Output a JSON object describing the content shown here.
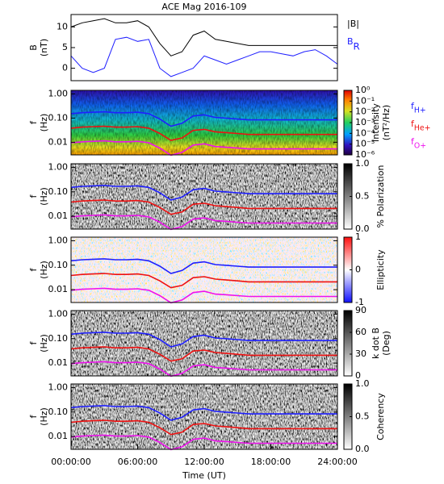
{
  "chart_data": [
    {
      "type": "line",
      "title": "ACE Mag 2016-109",
      "ylabel": [
        "B",
        "(nT)"
      ],
      "x": [
        0,
        1,
        2,
        3,
        4,
        5,
        6,
        7,
        8,
        9,
        10,
        11,
        12,
        13,
        14,
        15,
        16,
        17,
        18,
        19,
        20,
        21,
        22,
        23,
        24
      ],
      "xlim": [
        0,
        24
      ],
      "ylim": [
        -3,
        13
      ],
      "yticks": [
        0,
        5,
        10
      ],
      "legend": "right-outside",
      "series": [
        {
          "name": "|B|",
          "color": "#000000",
          "values": [
            10,
            11,
            11.5,
            12,
            11,
            11,
            11.5,
            10,
            6,
            3,
            4,
            8,
            9,
            7,
            6.5,
            6,
            5.5,
            5.5,
            5.5,
            5.5,
            5.5,
            5.5,
            5.5,
            5.5,
            5.5
          ]
        },
        {
          "name": "BR",
          "color": "#1f1fff",
          "values": [
            3,
            0,
            -1,
            0,
            7,
            7.5,
            6.5,
            7,
            0,
            -2,
            -1,
            0,
            3,
            2,
            1,
            2,
            3,
            4,
            4,
            3.5,
            3,
            4,
            4.5,
            3,
            1
          ]
        }
      ]
    },
    {
      "type": "spectrogram",
      "ylabel": [
        "f",
        "(Hz)"
      ],
      "colormap": "rainbow",
      "colorbar_log": true,
      "colorbar_label": [
        "Intensity",
        "(nT²/Hz)"
      ],
      "clim": [
        1e-06,
        1
      ],
      "cticks": [
        {
          "value": 1,
          "label": "10⁰"
        },
        {
          "value": 0.1,
          "label": "10⁻¹"
        },
        {
          "value": 0.01,
          "label": "10⁻²"
        },
        {
          "value": 0.001,
          "label": "10⁻³"
        },
        {
          "value": 0.0001,
          "label": "10⁻⁴"
        },
        {
          "value": 1e-05,
          "label": "10⁻⁵"
        },
        {
          "value": 1e-06,
          "label": "10⁻⁶"
        }
      ],
      "log_y": true,
      "ylim": [
        0.003,
        1.4
      ],
      "yticks": [
        {
          "value": 1,
          "label": "1.00"
        },
        {
          "value": 0.1,
          "label": "0.10"
        },
        {
          "value": 0.01,
          "label": "0.01"
        }
      ],
      "xlim": [
        0,
        24
      ],
      "legend": "right-outside",
      "x": [
        0,
        1,
        2,
        3,
        4,
        5,
        6,
        7,
        8,
        9,
        10,
        11,
        12,
        13,
        14,
        15,
        16,
        17,
        18,
        19,
        20,
        21,
        22,
        23,
        24
      ],
      "series": [
        {
          "name": "fH+",
          "color": "#1f1fff",
          "values": [
            0.152,
            0.167,
            0.175,
            0.182,
            0.167,
            0.167,
            0.175,
            0.152,
            0.091,
            0.046,
            0.061,
            0.122,
            0.137,
            0.106,
            0.099,
            0.091,
            0.084,
            0.084,
            0.084,
            0.084,
            0.084,
            0.084,
            0.084,
            0.084,
            0.084
          ]
        },
        {
          "name": "fHe+",
          "color": "#ee1111",
          "values": [
            0.038,
            0.042,
            0.044,
            0.046,
            0.042,
            0.042,
            0.044,
            0.038,
            0.023,
            0.012,
            0.015,
            0.031,
            0.034,
            0.027,
            0.025,
            0.023,
            0.021,
            0.021,
            0.021,
            0.021,
            0.021,
            0.021,
            0.021,
            0.021,
            0.021
          ]
        },
        {
          "name": "fO+",
          "color": "#ee11ee",
          "values": [
            0.0095,
            0.0104,
            0.0109,
            0.0114,
            0.0104,
            0.0104,
            0.0109,
            0.0095,
            0.0057,
            0.0029,
            0.0038,
            0.0076,
            0.0086,
            0.0066,
            0.0062,
            0.0057,
            0.0053,
            0.0053,
            0.0053,
            0.0053,
            0.0053,
            0.0053,
            0.0053,
            0.0053,
            0.0053
          ]
        }
      ]
    },
    {
      "type": "spectrogram",
      "ylabel": [
        "f",
        "(Hz)"
      ],
      "colormap": "gray",
      "colorbar_log": false,
      "colorbar_label": [
        "% Polarization"
      ],
      "clim": [
        0,
        1
      ],
      "cticks": [
        {
          "value": 0,
          "label": "0.0"
        },
        {
          "value": 0.5,
          "label": "0.5"
        },
        {
          "value": 1,
          "label": "1.0"
        }
      ],
      "log_y": true,
      "ylim": [
        0.003,
        1.4
      ],
      "yticks": [
        {
          "value": 1,
          "label": "1.00"
        },
        {
          "value": 0.1,
          "label": "0.10"
        },
        {
          "value": 0.01,
          "label": "0.01"
        }
      ],
      "xlim": [
        0,
        24
      ],
      "x": [
        0,
        1,
        2,
        3,
        4,
        5,
        6,
        7,
        8,
        9,
        10,
        11,
        12,
        13,
        14,
        15,
        16,
        17,
        18,
        19,
        20,
        21,
        22,
        23,
        24
      ],
      "series": [
        {
          "color": "#1f1fff",
          "values": [
            0.152,
            0.167,
            0.175,
            0.182,
            0.167,
            0.167,
            0.175,
            0.152,
            0.091,
            0.046,
            0.061,
            0.122,
            0.137,
            0.106,
            0.099,
            0.091,
            0.084,
            0.084,
            0.084,
            0.084,
            0.084,
            0.084,
            0.084,
            0.084,
            0.084
          ]
        },
        {
          "color": "#ee1111",
          "values": [
            0.038,
            0.042,
            0.044,
            0.046,
            0.042,
            0.042,
            0.044,
            0.038,
            0.023,
            0.012,
            0.015,
            0.031,
            0.034,
            0.027,
            0.025,
            0.023,
            0.021,
            0.021,
            0.021,
            0.021,
            0.021,
            0.021,
            0.021,
            0.021,
            0.021
          ]
        },
        {
          "color": "#ee11ee",
          "values": [
            0.0095,
            0.0104,
            0.0109,
            0.0114,
            0.0104,
            0.0104,
            0.0109,
            0.0095,
            0.0057,
            0.0029,
            0.0038,
            0.0076,
            0.0086,
            0.0066,
            0.0062,
            0.0057,
            0.0053,
            0.0053,
            0.0053,
            0.0053,
            0.0053,
            0.0053,
            0.0053,
            0.0053,
            0.0053
          ]
        }
      ]
    },
    {
      "type": "spectrogram",
      "ylabel": [
        "f",
        "(Hz)"
      ],
      "colormap": "bwr",
      "colorbar_log": false,
      "colorbar_label": [
        "Ellipticity"
      ],
      "clim": [
        -1,
        1
      ],
      "cticks": [
        -1,
        0,
        1
      ],
      "log_y": true,
      "ylim": [
        0.003,
        1.4
      ],
      "yticks": [
        {
          "value": 1,
          "label": "1.00"
        },
        {
          "value": 0.1,
          "label": "0.10"
        },
        {
          "value": 0.01,
          "label": "0.01"
        }
      ],
      "xlim": [
        0,
        24
      ],
      "x": [
        0,
        1,
        2,
        3,
        4,
        5,
        6,
        7,
        8,
        9,
        10,
        11,
        12,
        13,
        14,
        15,
        16,
        17,
        18,
        19,
        20,
        21,
        22,
        23,
        24
      ],
      "series": [
        {
          "color": "#1f1fff",
          "values": [
            0.152,
            0.167,
            0.175,
            0.182,
            0.167,
            0.167,
            0.175,
            0.152,
            0.091,
            0.046,
            0.061,
            0.122,
            0.137,
            0.106,
            0.099,
            0.091,
            0.084,
            0.084,
            0.084,
            0.084,
            0.084,
            0.084,
            0.084,
            0.084,
            0.084
          ]
        },
        {
          "color": "#ee1111",
          "values": [
            0.038,
            0.042,
            0.044,
            0.046,
            0.042,
            0.042,
            0.044,
            0.038,
            0.023,
            0.012,
            0.015,
            0.031,
            0.034,
            0.027,
            0.025,
            0.023,
            0.021,
            0.021,
            0.021,
            0.021,
            0.021,
            0.021,
            0.021,
            0.021,
            0.021
          ]
        },
        {
          "color": "#ee11ee",
          "values": [
            0.0095,
            0.0104,
            0.0109,
            0.0114,
            0.0104,
            0.0104,
            0.0109,
            0.0095,
            0.0057,
            0.0029,
            0.0038,
            0.0076,
            0.0086,
            0.0066,
            0.0062,
            0.0057,
            0.0053,
            0.0053,
            0.0053,
            0.0053,
            0.0053,
            0.0053,
            0.0053,
            0.0053,
            0.0053
          ]
        }
      ]
    },
    {
      "type": "spectrogram",
      "ylabel": [
        "f",
        "(Hz)"
      ],
      "colormap": "gray",
      "colorbar_log": false,
      "colorbar_label": [
        "k dot B",
        "(Deg)"
      ],
      "clim": [
        0,
        90
      ],
      "cticks": [
        0,
        30,
        60,
        90
      ],
      "log_y": true,
      "ylim": [
        0.003,
        1.4
      ],
      "yticks": [
        {
          "value": 1,
          "label": "1.00"
        },
        {
          "value": 0.1,
          "label": "0.10"
        },
        {
          "value": 0.01,
          "label": "0.01"
        }
      ],
      "xlim": [
        0,
        24
      ],
      "x": [
        0,
        1,
        2,
        3,
        4,
        5,
        6,
        7,
        8,
        9,
        10,
        11,
        12,
        13,
        14,
        15,
        16,
        17,
        18,
        19,
        20,
        21,
        22,
        23,
        24
      ],
      "series": [
        {
          "color": "#1f1fff",
          "values": [
            0.152,
            0.167,
            0.175,
            0.182,
            0.167,
            0.167,
            0.175,
            0.152,
            0.091,
            0.046,
            0.061,
            0.122,
            0.137,
            0.106,
            0.099,
            0.091,
            0.084,
            0.084,
            0.084,
            0.084,
            0.084,
            0.084,
            0.084,
            0.084,
            0.084
          ]
        },
        {
          "color": "#ee1111",
          "values": [
            0.038,
            0.042,
            0.044,
            0.046,
            0.042,
            0.042,
            0.044,
            0.038,
            0.023,
            0.012,
            0.015,
            0.031,
            0.034,
            0.027,
            0.025,
            0.023,
            0.021,
            0.021,
            0.021,
            0.021,
            0.021,
            0.021,
            0.021,
            0.021,
            0.021
          ]
        },
        {
          "color": "#ee11ee",
          "values": [
            0.0095,
            0.0104,
            0.0109,
            0.0114,
            0.0104,
            0.0104,
            0.0109,
            0.0095,
            0.0057,
            0.0029,
            0.0038,
            0.0076,
            0.0086,
            0.0066,
            0.0062,
            0.0057,
            0.0053,
            0.0053,
            0.0053,
            0.0053,
            0.0053,
            0.0053,
            0.0053,
            0.0053,
            0.0053
          ]
        }
      ]
    },
    {
      "type": "spectrogram",
      "ylabel": [
        "f",
        "(Hz)"
      ],
      "colormap": "gray",
      "colorbar_log": false,
      "colorbar_label": [
        "Coherency"
      ],
      "clim": [
        0,
        1
      ],
      "cticks": [
        {
          "value": 0,
          "label": "0.0"
        },
        {
          "value": 0.5,
          "label": "0.5"
        },
        {
          "value": 1,
          "label": "1.0"
        }
      ],
      "log_y": true,
      "ylim": [
        0.003,
        1.4
      ],
      "yticks": [
        {
          "value": 1,
          "label": "1.00"
        },
        {
          "value": 0.1,
          "label": "0.10"
        },
        {
          "value": 0.01,
          "label": "0.01"
        }
      ],
      "xlim": [
        0,
        24
      ],
      "xlabel": "Time (UT)",
      "xticks": [
        {
          "value": 0,
          "label": "00:00:00"
        },
        {
          "value": 6,
          "label": "06:00:00"
        },
        {
          "value": 12,
          "label": "12:00:00"
        },
        {
          "value": 18,
          "label": "18:00:00"
        },
        {
          "value": 24,
          "label": "24:00:00"
        }
      ],
      "x": [
        0,
        1,
        2,
        3,
        4,
        5,
        6,
        7,
        8,
        9,
        10,
        11,
        12,
        13,
        14,
        15,
        16,
        17,
        18,
        19,
        20,
        21,
        22,
        23,
        24
      ],
      "series": [
        {
          "color": "#1f1fff",
          "values": [
            0.152,
            0.167,
            0.175,
            0.182,
            0.167,
            0.167,
            0.175,
            0.152,
            0.091,
            0.046,
            0.061,
            0.122,
            0.137,
            0.106,
            0.099,
            0.091,
            0.084,
            0.084,
            0.084,
            0.084,
            0.084,
            0.084,
            0.084,
            0.084,
            0.084
          ]
        },
        {
          "color": "#ee1111",
          "values": [
            0.038,
            0.042,
            0.044,
            0.046,
            0.042,
            0.042,
            0.044,
            0.038,
            0.023,
            0.012,
            0.015,
            0.031,
            0.034,
            0.027,
            0.025,
            0.023,
            0.021,
            0.021,
            0.021,
            0.021,
            0.021,
            0.021,
            0.021,
            0.021,
            0.021
          ]
        },
        {
          "color": "#ee11ee",
          "values": [
            0.0095,
            0.0104,
            0.0109,
            0.0114,
            0.0104,
            0.0104,
            0.0109,
            0.0095,
            0.0057,
            0.0029,
            0.0038,
            0.0076,
            0.0086,
            0.0066,
            0.0062,
            0.0057,
            0.0053,
            0.0053,
            0.0053,
            0.0053,
            0.0053,
            0.0053,
            0.0053,
            0.0053,
            0.0053
          ]
        }
      ]
    }
  ]
}
